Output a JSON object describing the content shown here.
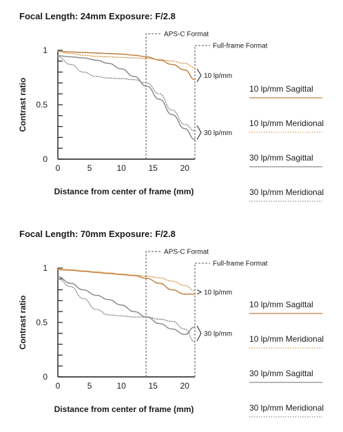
{
  "colors": {
    "sagittal_10": "#c07f3f",
    "meridional_10": "#d59a52",
    "sagittal_30": "#8a8a8a",
    "meridional_30": "#8a8a8a",
    "axis": "#1a1a1a",
    "format_line": "#555555"
  },
  "legend": [
    {
      "label": "10 lp/mm Sagittal",
      "style": "solid",
      "color": "#c07f3f"
    },
    {
      "label": "10 lp/mm Meridional",
      "style": "dotted",
      "color": "#d59a52"
    },
    {
      "label": "30 lp/mm Sagittal",
      "style": "solid",
      "color": "#8a8a8a"
    },
    {
      "label": "30 lp/mm Meridional",
      "style": "dotted",
      "color": "#8a8a8a"
    }
  ],
  "chart_data": [
    {
      "type": "line",
      "title": "Focal Length: 24mm   Exposure: F/2.8",
      "xlabel": "Distance from center of frame (mm)",
      "ylabel": "Contrast ratio",
      "xlim": [
        0,
        21.6
      ],
      "ylim": [
        0,
        1
      ],
      "xticks": [
        0,
        5,
        10,
        15,
        20
      ],
      "yticks": [
        0,
        0.5,
        1
      ],
      "format_markers": [
        {
          "label": "APS-C Format",
          "x": 13.9
        },
        {
          "label": "Full-frame Format",
          "x": 21.6
        }
      ],
      "group_labels": [
        {
          "label": "10 lp/mm",
          "y_range": [
            0.71,
            0.83
          ]
        },
        {
          "label": "30 lp/mm",
          "y_range": [
            0.18,
            0.31
          ]
        }
      ],
      "series": [
        {
          "name": "10 lp/mm Sagittal",
          "x": [
            0,
            2,
            4,
            6,
            8,
            10,
            12,
            14,
            16,
            18,
            20,
            21.6
          ],
          "y": [
            0.99,
            0.985,
            0.98,
            0.975,
            0.97,
            0.965,
            0.955,
            0.94,
            0.91,
            0.87,
            0.82,
            0.73
          ]
        },
        {
          "name": "10 lp/mm Meridional",
          "x": [
            0,
            2,
            4,
            6,
            8,
            10,
            12,
            14,
            16,
            18,
            20,
            21.6
          ],
          "y": [
            0.99,
            0.97,
            0.955,
            0.945,
            0.94,
            0.935,
            0.93,
            0.925,
            0.915,
            0.9,
            0.88,
            0.84
          ]
        },
        {
          "name": "30 lp/mm Sagittal",
          "x": [
            0,
            2,
            4,
            6,
            8,
            10,
            12,
            14,
            16,
            18,
            20,
            21.6
          ],
          "y": [
            0.95,
            0.94,
            0.93,
            0.91,
            0.88,
            0.83,
            0.76,
            0.67,
            0.55,
            0.41,
            0.28,
            0.18
          ]
        },
        {
          "name": "30 lp/mm Meridional",
          "x": [
            0,
            2,
            4,
            6,
            8,
            10,
            12,
            14,
            16,
            18,
            20,
            21.6
          ],
          "y": [
            0.94,
            0.87,
            0.8,
            0.76,
            0.745,
            0.74,
            0.73,
            0.7,
            0.6,
            0.45,
            0.32,
            0.26
          ]
        }
      ]
    },
    {
      "type": "line",
      "title": "Focal Length: 70mm   Exposure: F/2.8",
      "xlabel": "Distance from center of frame (mm)",
      "ylabel": "Contrast ratio",
      "xlim": [
        0,
        21.6
      ],
      "ylim": [
        0,
        1
      ],
      "xticks": [
        0,
        5,
        10,
        15,
        20
      ],
      "yticks": [
        0,
        0.5,
        1
      ],
      "format_markers": [
        {
          "label": "APS-C Format",
          "x": 13.9
        },
        {
          "label": "Full-frame Format",
          "x": 21.6
        }
      ],
      "group_labels": [
        {
          "label": "10 lp/mm",
          "y_range": [
            0.76,
            0.8
          ]
        },
        {
          "label": "30 lp/mm",
          "y_range": [
            0.33,
            0.47
          ]
        }
      ],
      "series": [
        {
          "name": "10 lp/mm Sagittal",
          "x": [
            0,
            2,
            4,
            6,
            8,
            10,
            12,
            14,
            16,
            18,
            20,
            21.6
          ],
          "y": [
            0.985,
            0.98,
            0.97,
            0.96,
            0.95,
            0.94,
            0.93,
            0.905,
            0.86,
            0.8,
            0.76,
            0.76
          ]
        },
        {
          "name": "10 lp/mm Meridional",
          "x": [
            0,
            2,
            4,
            6,
            8,
            10,
            12,
            14,
            16,
            18,
            20,
            21.6
          ],
          "y": [
            0.99,
            0.985,
            0.975,
            0.965,
            0.955,
            0.945,
            0.935,
            0.925,
            0.91,
            0.88,
            0.84,
            0.79
          ]
        },
        {
          "name": "30 lp/mm Sagittal",
          "x": [
            0,
            2,
            4,
            6,
            8,
            10,
            12,
            14,
            16,
            18,
            20,
            21.6
          ],
          "y": [
            0.92,
            0.86,
            0.8,
            0.75,
            0.71,
            0.66,
            0.6,
            0.55,
            0.49,
            0.44,
            0.39,
            0.46
          ]
        },
        {
          "name": "30 lp/mm Meridional",
          "x": [
            0,
            2,
            4,
            6,
            8,
            10,
            12,
            14,
            16,
            18,
            20,
            21.6
          ],
          "y": [
            0.9,
            0.83,
            0.72,
            0.62,
            0.57,
            0.56,
            0.55,
            0.55,
            0.53,
            0.51,
            0.44,
            0.32
          ]
        }
      ]
    }
  ]
}
